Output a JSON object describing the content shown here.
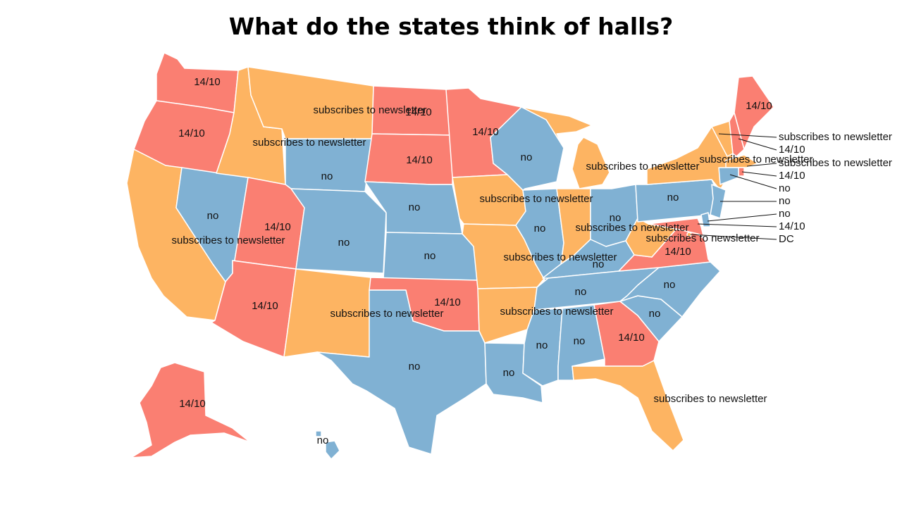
{
  "title": "What do the states think of halls?",
  "colors": {
    "14/10": "#fa7f72",
    "subscribes to newsletter": "#fdb462",
    "no": "#80b1d3"
  },
  "states": [
    {
      "id": "WA",
      "value": "14/10"
    },
    {
      "id": "OR",
      "value": "14/10"
    },
    {
      "id": "CA",
      "value": "subscribes to newsletter"
    },
    {
      "id": "NV",
      "value": "no"
    },
    {
      "id": "ID",
      "value": "subscribes to newsletter"
    },
    {
      "id": "MT",
      "value": "subscribes to newsletter"
    },
    {
      "id": "WY",
      "value": "no"
    },
    {
      "id": "UT",
      "value": "14/10"
    },
    {
      "id": "AZ",
      "value": "14/10"
    },
    {
      "id": "CO",
      "value": "no"
    },
    {
      "id": "NM",
      "value": "subscribes to newsletter"
    },
    {
      "id": "ND",
      "value": "14/10"
    },
    {
      "id": "SD",
      "value": "14/10"
    },
    {
      "id": "NE",
      "value": "no"
    },
    {
      "id": "KS",
      "value": "no"
    },
    {
      "id": "OK",
      "value": "14/10"
    },
    {
      "id": "TX",
      "value": "no"
    },
    {
      "id": "MN",
      "value": "14/10"
    },
    {
      "id": "IA",
      "value": "subscribes to newsletter"
    },
    {
      "id": "MO",
      "value": "subscribes to newsletter"
    },
    {
      "id": "AR",
      "value": "subscribes to newsletter"
    },
    {
      "id": "LA",
      "value": "no"
    },
    {
      "id": "WI",
      "value": "no"
    },
    {
      "id": "IL",
      "value": "no"
    },
    {
      "id": "MI",
      "value": "subscribes to newsletter"
    },
    {
      "id": "IN",
      "value": "subscribes to newsletter"
    },
    {
      "id": "OH",
      "value": "no"
    },
    {
      "id": "KY",
      "value": "no"
    },
    {
      "id": "TN",
      "value": "no"
    },
    {
      "id": "MS",
      "value": "no"
    },
    {
      "id": "AL",
      "value": "no"
    },
    {
      "id": "GA",
      "value": "14/10"
    },
    {
      "id": "FL",
      "value": "subscribes to newsletter"
    },
    {
      "id": "SC",
      "value": "no"
    },
    {
      "id": "NC",
      "value": "no"
    },
    {
      "id": "VA",
      "value": "14/10"
    },
    {
      "id": "WV",
      "value": "subscribes to newsletter"
    },
    {
      "id": "PA",
      "value": "no"
    },
    {
      "id": "NY",
      "value": "subscribes to newsletter"
    },
    {
      "id": "VT",
      "value": "subscribes to newsletter"
    },
    {
      "id": "NH",
      "value": "14/10"
    },
    {
      "id": "ME",
      "value": "14/10"
    },
    {
      "id": "MA",
      "value": "subscribes to newsletter"
    },
    {
      "id": "RI",
      "value": "14/10"
    },
    {
      "id": "CT",
      "value": "no"
    },
    {
      "id": "NJ",
      "value": "no"
    },
    {
      "id": "DE",
      "value": "no"
    },
    {
      "id": "MD",
      "value": "14/10"
    },
    {
      "id": "DC",
      "value": "subscribes to newsletter"
    },
    {
      "id": "AK",
      "value": "14/10"
    },
    {
      "id": "HI",
      "value": "no"
    }
  ],
  "labels": [
    {
      "id": "WA",
      "text": "14/10"
    },
    {
      "id": "OR",
      "text": "14/10"
    },
    {
      "id": "CA",
      "text": "subscribes to newsletter"
    },
    {
      "id": "NV",
      "text": "no"
    },
    {
      "id": "ID",
      "text": "subscribes to newsletter"
    },
    {
      "id": "MT",
      "text": "subscribes to newsletter"
    },
    {
      "id": "WY",
      "text": "no"
    },
    {
      "id": "UT",
      "text": "14/10"
    },
    {
      "id": "AZ",
      "text": "14/10"
    },
    {
      "id": "CO",
      "text": "no"
    },
    {
      "id": "NM",
      "text": "subscribes to newsletter"
    },
    {
      "id": "ND",
      "text": "14/10"
    },
    {
      "id": "SD",
      "text": "14/10"
    },
    {
      "id": "NE",
      "text": "no"
    },
    {
      "id": "KS",
      "text": "no"
    },
    {
      "id": "OK",
      "text": "14/10"
    },
    {
      "id": "TX",
      "text": "no"
    },
    {
      "id": "MN",
      "text": "14/10"
    },
    {
      "id": "IA",
      "text": "subscribes to newsletter"
    },
    {
      "id": "MO",
      "text": "subscribes to newsletter"
    },
    {
      "id": "AR",
      "text": "subscribes to newsletter"
    },
    {
      "id": "LA",
      "text": "no"
    },
    {
      "id": "WI",
      "text": "no"
    },
    {
      "id": "IL",
      "text": "no"
    },
    {
      "id": "MI",
      "text": "subscribes to newsletter"
    },
    {
      "id": "IN",
      "text": "subscribes to newsletter"
    },
    {
      "id": "OH",
      "text": "no"
    },
    {
      "id": "KY",
      "text": "no"
    },
    {
      "id": "TN",
      "text": "no"
    },
    {
      "id": "MS",
      "text": "no"
    },
    {
      "id": "AL",
      "text": "no"
    },
    {
      "id": "GA",
      "text": "14/10"
    },
    {
      "id": "FL",
      "text": "subscribes to newsletter"
    },
    {
      "id": "SC",
      "text": "no"
    },
    {
      "id": "NC",
      "text": "no"
    },
    {
      "id": "VA",
      "text": "14/10"
    },
    {
      "id": "WV",
      "text": "subscribes to newsletter"
    },
    {
      "id": "PA",
      "text": "no"
    },
    {
      "id": "NY",
      "text": "subscribes to newsletter"
    },
    {
      "id": "ME",
      "text": "14/10"
    },
    {
      "id": "AK",
      "text": "14/10"
    },
    {
      "id": "HI",
      "text": "no"
    },
    {
      "id": "VT",
      "text": "subscribes to newsletter"
    },
    {
      "id": "NH",
      "text": "14/10"
    },
    {
      "id": "MA",
      "text": "subscribes to newsletter"
    },
    {
      "id": "RI",
      "text": "14/10"
    },
    {
      "id": "CT",
      "text": "no"
    },
    {
      "id": "NJ",
      "text": "no"
    },
    {
      "id": "DE",
      "text": "no"
    },
    {
      "id": "MD",
      "text": "14/10"
    },
    {
      "id": "DC",
      "text": "DC"
    }
  ]
}
